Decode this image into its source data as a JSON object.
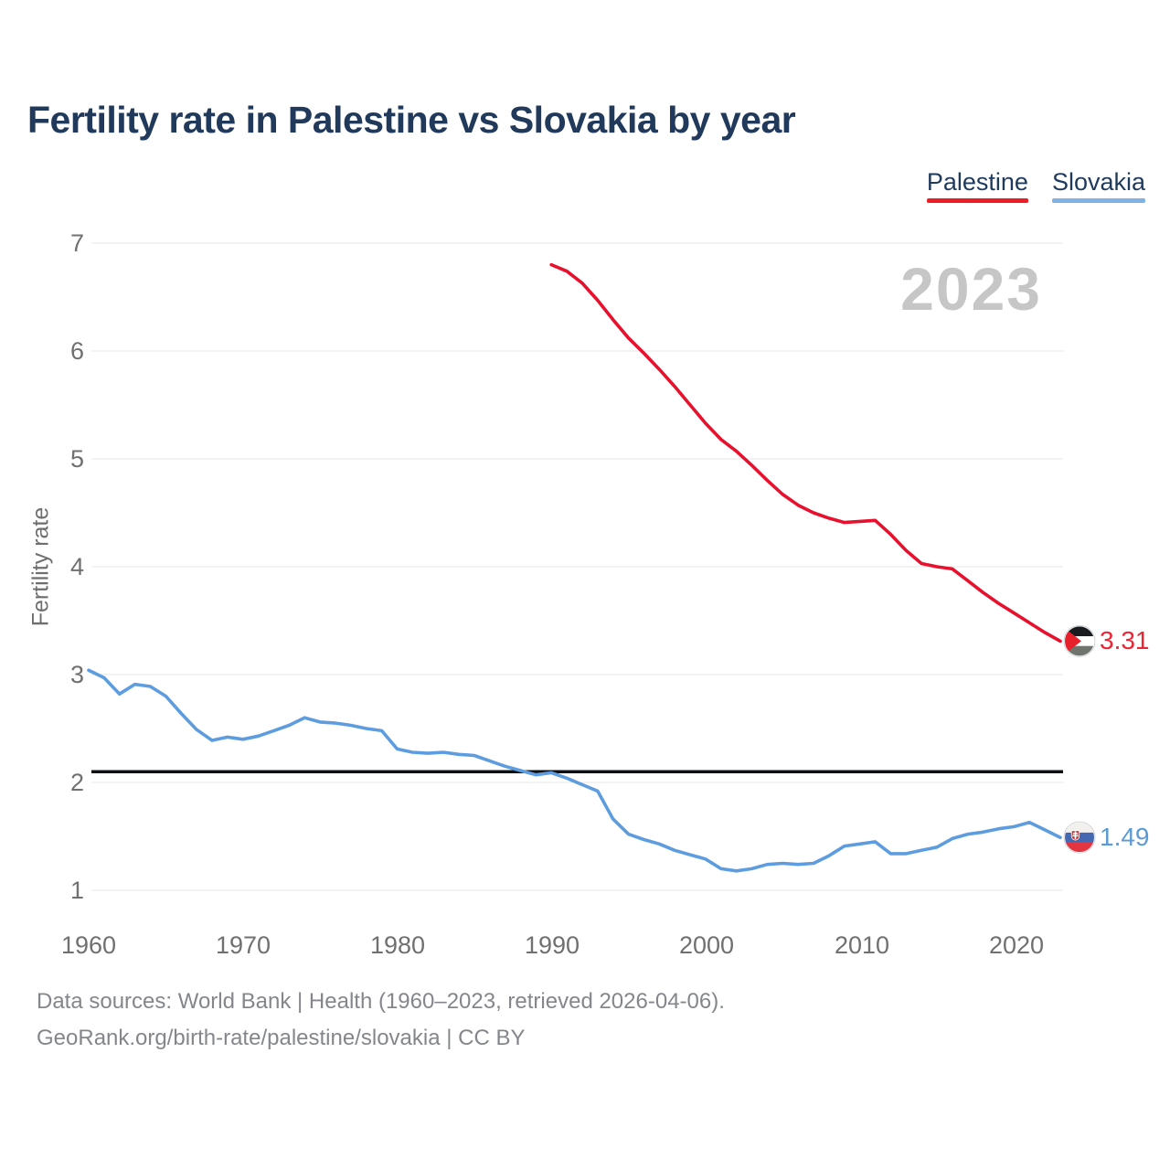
{
  "title": "Fertility rate in Palestine vs Slovakia by year",
  "watermark": "2023",
  "legend": {
    "items": [
      {
        "label": "Palestine",
        "color": "#ee1d25"
      },
      {
        "label": "Slovakia",
        "color": "#7fb2e5"
      }
    ]
  },
  "chart_data": {
    "type": "line",
    "title": "Fertility rate in Palestine vs Slovakia by year",
    "xlabel": "",
    "ylabel": "Fertility rate",
    "xlim": [
      1960,
      2023
    ],
    "ylim": [
      1,
      7
    ],
    "grid": true,
    "legend_position": "top-right",
    "x_ticks": [
      "1960",
      "1970",
      "1980",
      "1990",
      "2000",
      "2010",
      "2020"
    ],
    "y_ticks": [
      "7",
      "6",
      "5",
      "4",
      "3",
      "2",
      "1"
    ],
    "replacement_line": {
      "value": 2.1,
      "color": "#0c1016"
    },
    "series": [
      {
        "name": "Palestine",
        "color": "#e8112d",
        "label_color": "#ed2434",
        "flag": "palestine",
        "start_year": 1990,
        "end_label": "3.31",
        "values": [
          6.8,
          6.74,
          6.63,
          6.47,
          6.29,
          6.12,
          5.98,
          5.83,
          5.67,
          5.5,
          5.33,
          5.18,
          5.07,
          4.94,
          4.8,
          4.67,
          4.57,
          4.5,
          4.45,
          4.41,
          4.42,
          4.43,
          4.3,
          4.15,
          4.03,
          4.0,
          3.98,
          3.87,
          3.76,
          3.66,
          3.57,
          3.48,
          3.39,
          3.31
        ]
      },
      {
        "name": "Slovakia",
        "color": "#5e9ce0",
        "label_color": "#5b9bd5",
        "flag": "slovakia",
        "start_year": 1960,
        "end_label": "1.49",
        "values": [
          3.04,
          2.97,
          2.82,
          2.91,
          2.89,
          2.8,
          2.64,
          2.49,
          2.39,
          2.42,
          2.4,
          2.43,
          2.48,
          2.53,
          2.6,
          2.56,
          2.55,
          2.53,
          2.5,
          2.48,
          2.31,
          2.28,
          2.27,
          2.28,
          2.26,
          2.25,
          2.2,
          2.15,
          2.11,
          2.07,
          2.09,
          2.04,
          1.98,
          1.92,
          1.66,
          1.52,
          1.47,
          1.43,
          1.37,
          1.33,
          1.29,
          1.2,
          1.18,
          1.2,
          1.24,
          1.25,
          1.24,
          1.25,
          1.32,
          1.41,
          1.43,
          1.45,
          1.34,
          1.34,
          1.37,
          1.4,
          1.48,
          1.52,
          1.54,
          1.57,
          1.59,
          1.63,
          1.56,
          1.49
        ]
      }
    ]
  },
  "footer": {
    "line1": "Data sources: World Bank | Health (1960–2023, retrieved 2026-04-06).",
    "line2": "GeoRank.org/birth-rate/palestine/slovakia | CC BY"
  }
}
